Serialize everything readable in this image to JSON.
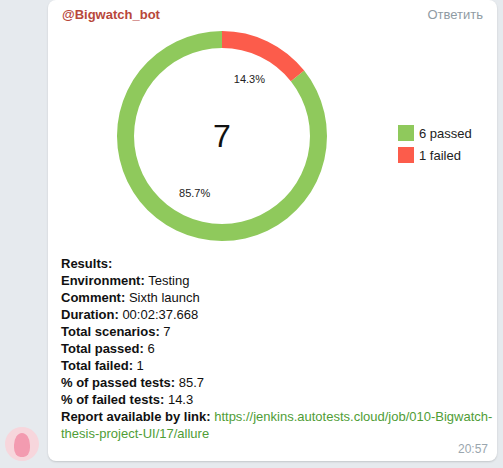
{
  "message": {
    "sender": "@Bigwatch_bot",
    "action": "Ответить",
    "time": "20:57",
    "results_heading": "Results:",
    "fields": [
      {
        "label": "Environment:",
        "value": "Testing"
      },
      {
        "label": "Comment:",
        "value": "Sixth launch"
      },
      {
        "label": "Duration:",
        "value": "00:02:37.668"
      },
      {
        "label": "Total scenarios:",
        "value": 7
      },
      {
        "label": "Total passed:",
        "value": 6
      },
      {
        "label": "Total failed:",
        "value": 1
      },
      {
        "label": "% of passed tests:",
        "value": 85.7
      },
      {
        "label": "% of failed tests:",
        "value": 14.3
      }
    ],
    "link": {
      "label": "Report available by link:",
      "url": "https://jenkins.autotests.cloud/job/010-Bigwatch-thesis-project-UI/17/allure"
    }
  },
  "chart_data": {
    "type": "pie",
    "categories": [
      "6 passed",
      "1 failed"
    ],
    "values": [
      85.7,
      14.3
    ],
    "value_labels": [
      "85.7%",
      "14.3%"
    ],
    "colors": [
      "#8fc95c",
      "#fc5c4b"
    ],
    "data_labels": true,
    "legend": "right",
    "annotations": [
      "7"
    ]
  }
}
